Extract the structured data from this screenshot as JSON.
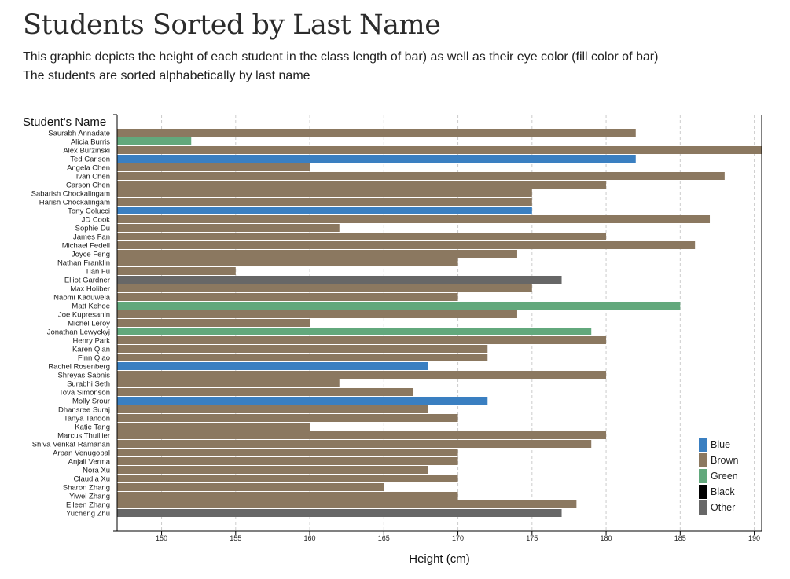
{
  "header": {
    "title": "Students Sorted by Last Name",
    "subtitle_line1": "This graphic depicts the height of each student in the class length of bar) as well as their eye color (fill color of bar)",
    "subtitle_line2": "The students are sorted alphabetically by last name"
  },
  "colors": {
    "Blue": "#3a7fc1",
    "Brown": "#8b7860",
    "Green": "#62a87c",
    "Black": "#000000",
    "Other": "#676767",
    "gridline": "#cccccc",
    "axis": "#000000"
  },
  "chart_data": {
    "type": "bar",
    "orientation": "horizontal",
    "xlabel": "Height (cm)",
    "ylabel": "Student's Name",
    "xlim": [
      147,
      190.5
    ],
    "xticks": [
      150,
      155,
      160,
      165,
      170,
      175,
      180,
      185,
      190
    ],
    "grid": "vertical dashed",
    "legend_position": "bottom-right",
    "legend": [
      "Blue",
      "Brown",
      "Green",
      "Black",
      "Other"
    ],
    "categories": [
      "Saurabh Annadate",
      "Alicia Burris",
      "Alex Burzinski",
      "Ted Carlson",
      "Angela Chen",
      "Ivan Chen",
      "Carson Chen",
      "Sabarish Chockalingam",
      "Harish Chockalingam",
      "Tony Colucci",
      "JD Cook",
      "Sophie Du",
      "James Fan",
      "Michael Fedell",
      "Joyce Feng",
      "Nathan Franklin",
      "Tian Fu",
      "Elliot Gardner",
      "Max Holiber",
      "Naomi Kaduwela",
      "Matt Kehoe",
      "Joe Kupresanin",
      "Michel Leroy",
      "Jonathan Lewyckyj",
      "Henry Park",
      "Karen Qian",
      "Finn Qiao",
      "Rachel Rosenberg",
      "Shreyas Sabnis",
      "Surabhi Seth",
      "Tova Simonson",
      "Molly Srour",
      "Dhansree Suraj",
      "Tanya Tandon",
      "Katie Tang",
      "Marcus Thuillier",
      "Shiva Venkat Ramanan",
      "Arpan Venugopal",
      "Anjali Verma",
      "Nora Xu",
      "Claudia Xu",
      "Sharon Zhang",
      "Yiwei Zhang",
      "Eileen Zhang",
      "Yucheng Zhu"
    ],
    "values": [
      182,
      152,
      191,
      182,
      160,
      188,
      180,
      175,
      175,
      175,
      187,
      162,
      180,
      186,
      174,
      170,
      155,
      177,
      175,
      170,
      185,
      174,
      160,
      179,
      180,
      172,
      172,
      168,
      180,
      162,
      167,
      172,
      168,
      170,
      160,
      180,
      179,
      170,
      170,
      168,
      170,
      165,
      170,
      178,
      177
    ],
    "eye_colors": [
      "Brown",
      "Green",
      "Brown",
      "Blue",
      "Brown",
      "Brown",
      "Brown",
      "Brown",
      "Brown",
      "Blue",
      "Brown",
      "Brown",
      "Brown",
      "Brown",
      "Brown",
      "Brown",
      "Brown",
      "Other",
      "Brown",
      "Brown",
      "Green",
      "Brown",
      "Brown",
      "Green",
      "Brown",
      "Brown",
      "Brown",
      "Blue",
      "Brown",
      "Brown",
      "Brown",
      "Blue",
      "Brown",
      "Brown",
      "Brown",
      "Brown",
      "Brown",
      "Brown",
      "Brown",
      "Brown",
      "Brown",
      "Brown",
      "Brown",
      "Brown",
      "Other"
    ]
  }
}
